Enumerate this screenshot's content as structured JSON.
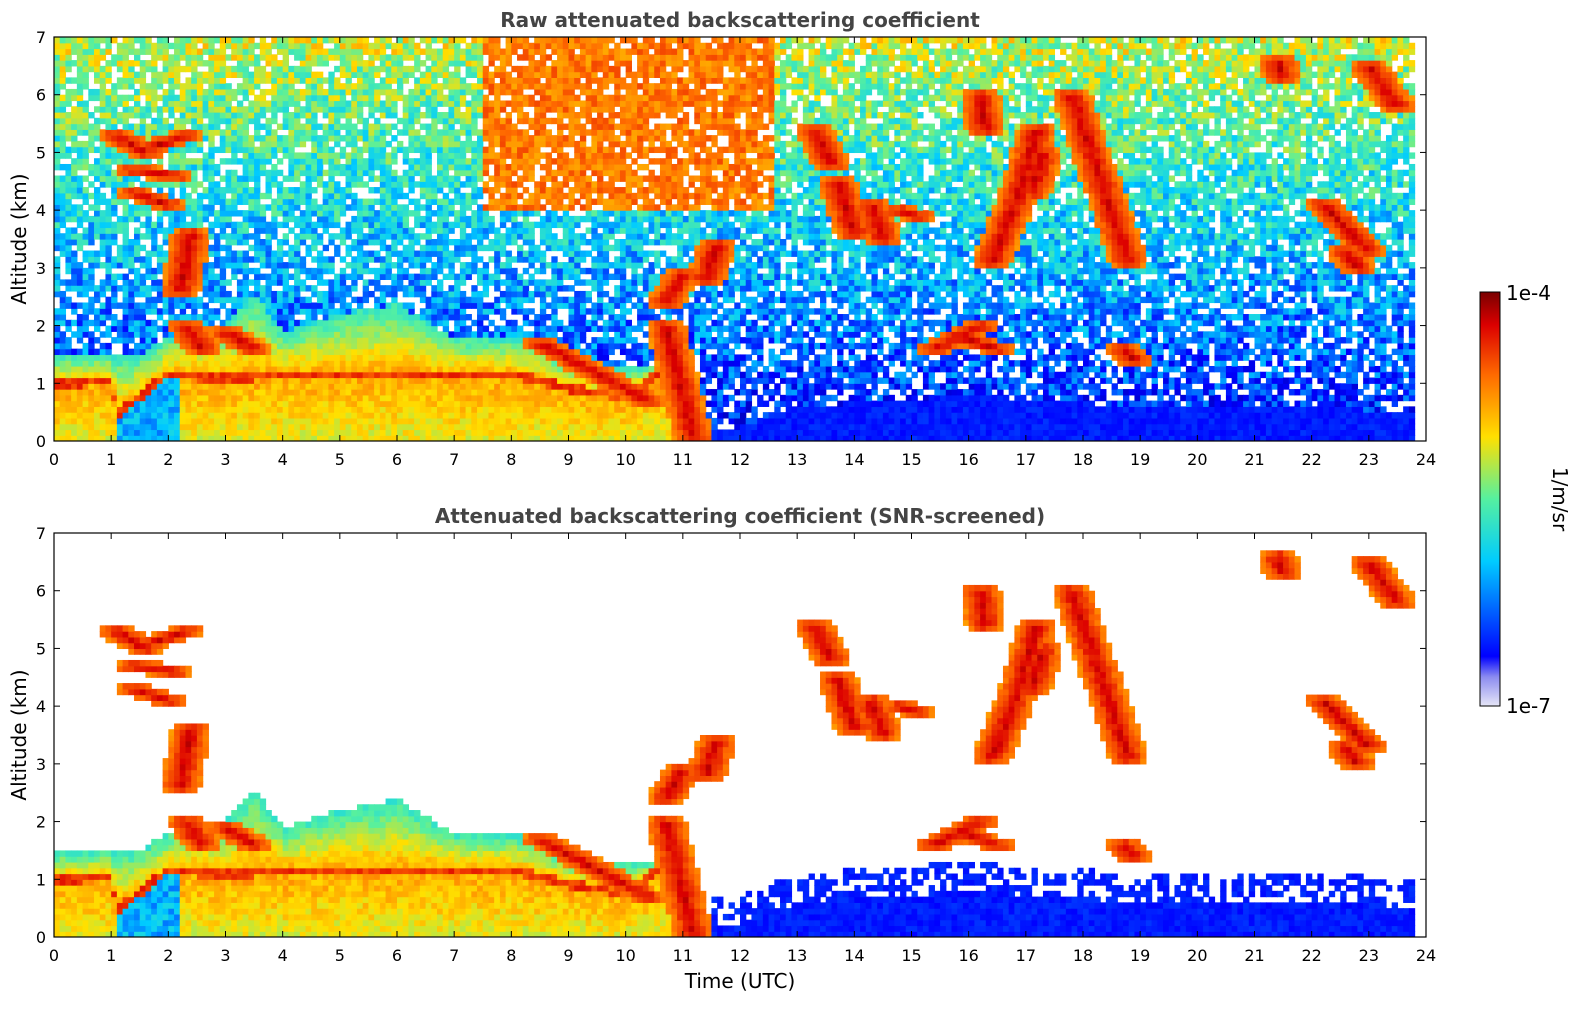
{
  "chart_data": [
    {
      "type": "heatmap",
      "title": "Raw attenuated backscattering coefficient",
      "xlabel": "",
      "ylabel": "Altitude (km)",
      "xlim": [
        0,
        24
      ],
      "ylim": [
        0,
        7
      ],
      "xticks": [
        "0",
        "1",
        "2",
        "3",
        "4",
        "5",
        "6",
        "7",
        "8",
        "9",
        "10",
        "11",
        "12",
        "13",
        "14",
        "15",
        "16",
        "17",
        "18",
        "19",
        "20",
        "21",
        "22",
        "23",
        "24"
      ],
      "yticks": [
        "0",
        "1",
        "2",
        "3",
        "4",
        "5",
        "6",
        "7"
      ],
      "screened": false,
      "grid": false
    },
    {
      "type": "heatmap",
      "title": "Attenuated backscattering coefficient (SNR-screened)",
      "xlabel": "Time (UTC)",
      "ylabel": "Altitude (km)",
      "xlim": [
        0,
        24
      ],
      "ylim": [
        0,
        7
      ],
      "xticks": [
        "0",
        "1",
        "2",
        "3",
        "4",
        "5",
        "6",
        "7",
        "8",
        "9",
        "10",
        "11",
        "12",
        "13",
        "14",
        "15",
        "16",
        "17",
        "18",
        "19",
        "20",
        "21",
        "22",
        "23",
        "24"
      ],
      "yticks": [
        "0",
        "1",
        "2",
        "3",
        "4",
        "5",
        "6",
        "7"
      ],
      "screened": true,
      "grid": false
    }
  ],
  "colorbar": {
    "label": "1/m/sr",
    "max_label": "1e-4",
    "min_label": "1e-7",
    "scale": "log",
    "range": [
      1e-07,
      0.0001
    ],
    "colormap": "jet"
  },
  "features": {
    "data_end_hour": 23.8,
    "boundary_layer": [
      [
        0,
        0.9
      ],
      [
        1,
        1.0
      ],
      [
        1.1,
        0.4
      ],
      [
        2,
        1.1
      ],
      [
        3,
        1.0
      ],
      [
        4,
        1.1
      ],
      [
        6,
        1.1
      ],
      [
        8,
        1.1
      ],
      [
        9,
        0.85
      ],
      [
        10,
        0.7
      ],
      [
        10.6,
        1.1
      ],
      [
        11,
        0.25
      ],
      [
        12,
        0.25
      ],
      [
        13,
        0.6
      ],
      [
        16,
        0.8
      ],
      [
        19,
        0.6
      ],
      [
        22,
        0.6
      ],
      [
        23.8,
        0.5
      ]
    ],
    "aerosol_layer_top": [
      [
        1.5,
        1.5
      ],
      [
        2.3,
        2.0
      ],
      [
        3.0,
        2.0
      ],
      [
        3.5,
        2.6
      ],
      [
        4,
        1.9
      ],
      [
        5,
        2.2
      ],
      [
        6,
        2.4
      ],
      [
        7,
        1.8
      ],
      [
        8,
        1.8
      ],
      [
        8.5,
        1.7
      ],
      [
        9,
        1.3
      ],
      [
        10.6,
        1.3
      ]
    ],
    "cloud_streaks": [
      {
        "x": [
          1.1,
          1.6
        ],
        "y": [
          5.3,
          5.0
        ]
      },
      {
        "x": [
          1.7,
          2.3
        ],
        "y": [
          5.1,
          5.3
        ]
      },
      {
        "x": [
          1.4,
          2.1
        ],
        "y": [
          4.7,
          4.6
        ]
      },
      {
        "x": [
          1.4,
          2.0
        ],
        "y": [
          4.3,
          4.1
        ]
      },
      {
        "x": [
          2.2,
          2.4
        ],
        "y": [
          2.6,
          3.6
        ]
      },
      {
        "x": [
          2.3,
          2.6
        ],
        "y": [
          2.0,
          1.6
        ]
      },
      {
        "x": [
          3.0,
          3.5
        ],
        "y": [
          1.9,
          1.6
        ]
      },
      {
        "x": [
          8.5,
          10.4
        ],
        "y": [
          1.7,
          0.7
        ]
      },
      {
        "x": [
          10.7,
          11.2
        ],
        "y": [
          2.0,
          0.0
        ]
      },
      {
        "x": [
          10.7,
          11.0
        ],
        "y": [
          2.4,
          2.9
        ]
      },
      {
        "x": [
          11.4,
          11.6
        ],
        "y": [
          2.8,
          3.4
        ]
      },
      {
        "x": [
          13.3,
          13.6
        ],
        "y": [
          5.4,
          4.8
        ]
      },
      {
        "x": [
          13.7,
          14.0
        ],
        "y": [
          4.5,
          3.6
        ]
      },
      {
        "x": [
          14.3,
          14.5
        ],
        "y": [
          4.1,
          3.5
        ]
      },
      {
        "x": [
          14.8,
          15.1
        ],
        "y": [
          4.0,
          3.9
        ]
      },
      {
        "x": [
          15.4,
          16.2
        ],
        "y": [
          1.6,
          2.0
        ]
      },
      {
        "x": [
          15.9,
          16.5
        ],
        "y": [
          1.8,
          1.6
        ]
      },
      {
        "x": [
          16.4,
          17.0
        ],
        "y": [
          3.1,
          4.6
        ]
      },
      {
        "x": [
          16.9,
          17.2
        ],
        "y": [
          4.4,
          5.4
        ]
      },
      {
        "x": [
          17.1,
          17.3
        ],
        "y": [
          4.3,
          5.0
        ]
      },
      {
        "x": [
          17.8,
          18.8
        ],
        "y": [
          6.0,
          3.1
        ]
      },
      {
        "x": [
          18.7,
          18.9
        ],
        "y": [
          1.6,
          1.4
        ]
      },
      {
        "x": [
          16.2,
          16.3
        ],
        "y": [
          6.0,
          5.4
        ]
      },
      {
        "x": [
          21.4,
          21.5
        ],
        "y": [
          6.6,
          6.3
        ]
      },
      {
        "x": [
          22.2,
          23.0
        ],
        "y": [
          4.1,
          3.3
        ]
      },
      {
        "x": [
          22.6,
          22.8
        ],
        "y": [
          3.3,
          3.0
        ]
      },
      {
        "x": [
          23.0,
          23.5
        ],
        "y": [
          6.5,
          5.8
        ]
      }
    ]
  }
}
